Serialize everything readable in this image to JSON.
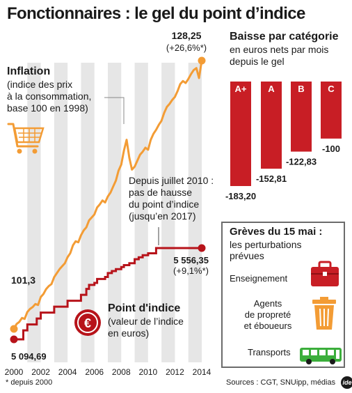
{
  "title": "Fonctionnaires : le gel du point d’indice",
  "colors": {
    "inflation": "#f39c35",
    "point_indice": "#b7131a",
    "bars": "#c81e25",
    "stripe": "#e6e6e6",
    "bus": "#3bae3b",
    "bin": "#f39c35",
    "briefcase": "#c81e25"
  },
  "chart_data": [
    {
      "type": "line",
      "x_ticks": [
        "2000",
        "2002",
        "2004",
        "2006",
        "2008",
        "2010",
        "2012",
        "2014"
      ],
      "xlim": [
        2000,
        2014
      ],
      "series": [
        {
          "name": "Inflation",
          "description_lines": [
            "(indice des prix",
            "à la consommation,",
            "base 100 en 1998)"
          ],
          "color": "#f39c35",
          "start_label": "101,3",
          "end_label": "128,25",
          "end_change": "(+26,6%*)",
          "x": [
            2000.0,
            2000.2,
            2000.4,
            2000.6,
            2000.8,
            2001.0,
            2001.2,
            2001.4,
            2001.6,
            2001.8,
            2002.0,
            2002.2,
            2002.4,
            2002.6,
            2002.8,
            2003.0,
            2003.2,
            2003.4,
            2003.6,
            2003.8,
            2004.0,
            2004.2,
            2004.4,
            2004.6,
            2004.8,
            2005.0,
            2005.2,
            2005.4,
            2005.6,
            2005.8,
            2006.0,
            2006.2,
            2006.4,
            2006.6,
            2006.8,
            2007.0,
            2007.2,
            2007.4,
            2007.6,
            2007.8,
            2008.0,
            2008.2,
            2008.4,
            2008.6,
            2008.8,
            2009.0,
            2009.2,
            2009.4,
            2009.6,
            2009.8,
            2010.0,
            2010.2,
            2010.4,
            2010.6,
            2010.8,
            2011.0,
            2011.2,
            2011.4,
            2011.6,
            2011.8,
            2012.0,
            2012.2,
            2012.4,
            2012.6,
            2012.8,
            2013.0,
            2013.2,
            2013.4,
            2013.6,
            2013.8,
            2014.0
          ],
          "values": [
            101.3,
            101.8,
            102.0,
            102.4,
            102.3,
            103.0,
            103.3,
            103.5,
            103.8,
            103.7,
            104.5,
            104.8,
            105.3,
            105.6,
            105.8,
            106.5,
            106.9,
            107.3,
            107.6,
            107.9,
            108.5,
            108.9,
            109.7,
            110.1,
            110.0,
            110.7,
            111.2,
            111.5,
            112.2,
            112.5,
            112.8,
            113.5,
            113.8,
            114.2,
            114.0,
            114.6,
            115.0,
            115.6,
            116.2,
            117.2,
            117.8,
            119.2,
            120.3,
            118.5,
            117.3,
            117.6,
            118.2,
            118.8,
            119.1,
            119.5,
            119.3,
            120.3,
            120.9,
            121.3,
            121.8,
            122.2,
            123.0,
            123.6,
            123.9,
            124.3,
            124.6,
            125.2,
            125.9,
            126.2,
            126.0,
            126.4,
            126.9,
            127.3,
            127.5,
            126.5,
            128.25
          ]
        },
        {
          "name": "Point d'indice",
          "description_lines": [
            "(valeur de l’indice",
            "en euros)"
          ],
          "color": "#b7131a",
          "start_label": "5 094,69",
          "end_label": "5 556,35",
          "end_change": "(+9,1%*)",
          "x": [
            2000.0,
            2000.7,
            2001.0,
            2001.7,
            2002.0,
            2002.9,
            2003.0,
            2003.9,
            2004.0,
            2004.9,
            2005.0,
            2005.4,
            2005.6,
            2006.0,
            2006.2,
            2006.8,
            2007.0,
            2007.3,
            2007.6,
            2008.0,
            2008.2,
            2008.6,
            2009.0,
            2009.3,
            2009.6,
            2010.0,
            2010.6,
            2014.0
          ],
          "values": [
            5094.69,
            5140,
            5170,
            5200,
            5230,
            5230,
            5260,
            5260,
            5290,
            5290,
            5320,
            5350,
            5370,
            5380,
            5400,
            5410,
            5430,
            5440,
            5450,
            5460,
            5470,
            5480,
            5500,
            5510,
            5520,
            5530,
            5556.35,
            5556.35
          ]
        }
      ],
      "annotation_lines": [
        "Depuis juillet 2010 :",
        "pas de hausse",
        "du point d’indice",
        "(jusqu’en 2017)"
      ]
    },
    {
      "type": "bar",
      "title": "Baisse par catégorie",
      "subtitle_lines": [
        "en euros nets par mois",
        "depuis le gel"
      ],
      "categories": [
        "A+",
        "A",
        "B",
        "C"
      ],
      "values": [
        -183.2,
        -152.81,
        -122.83,
        -100
      ],
      "value_labels": [
        "-183,20",
        "-152,81",
        "-122,83",
        "-100"
      ],
      "ylim": [
        -183.2,
        0
      ]
    }
  ],
  "greves": {
    "title": "Grèves du 15 mai :",
    "subtitle_lines": [
      "les perturbations",
      "prévues"
    ],
    "items": [
      {
        "label_lines": [
          "Enseignement"
        ],
        "icon": "briefcase-icon"
      },
      {
        "label_lines": [
          "Agents",
          "de propreté",
          "et éboueurs"
        ],
        "icon": "trash-bin-icon"
      },
      {
        "label_lines": [
          "Transports"
        ],
        "icon": "bus-icon"
      }
    ]
  },
  "footnote": "* depuis 2000",
  "sources": "Sources : CGT, SNUipp, médias",
  "logo_text": "ide"
}
